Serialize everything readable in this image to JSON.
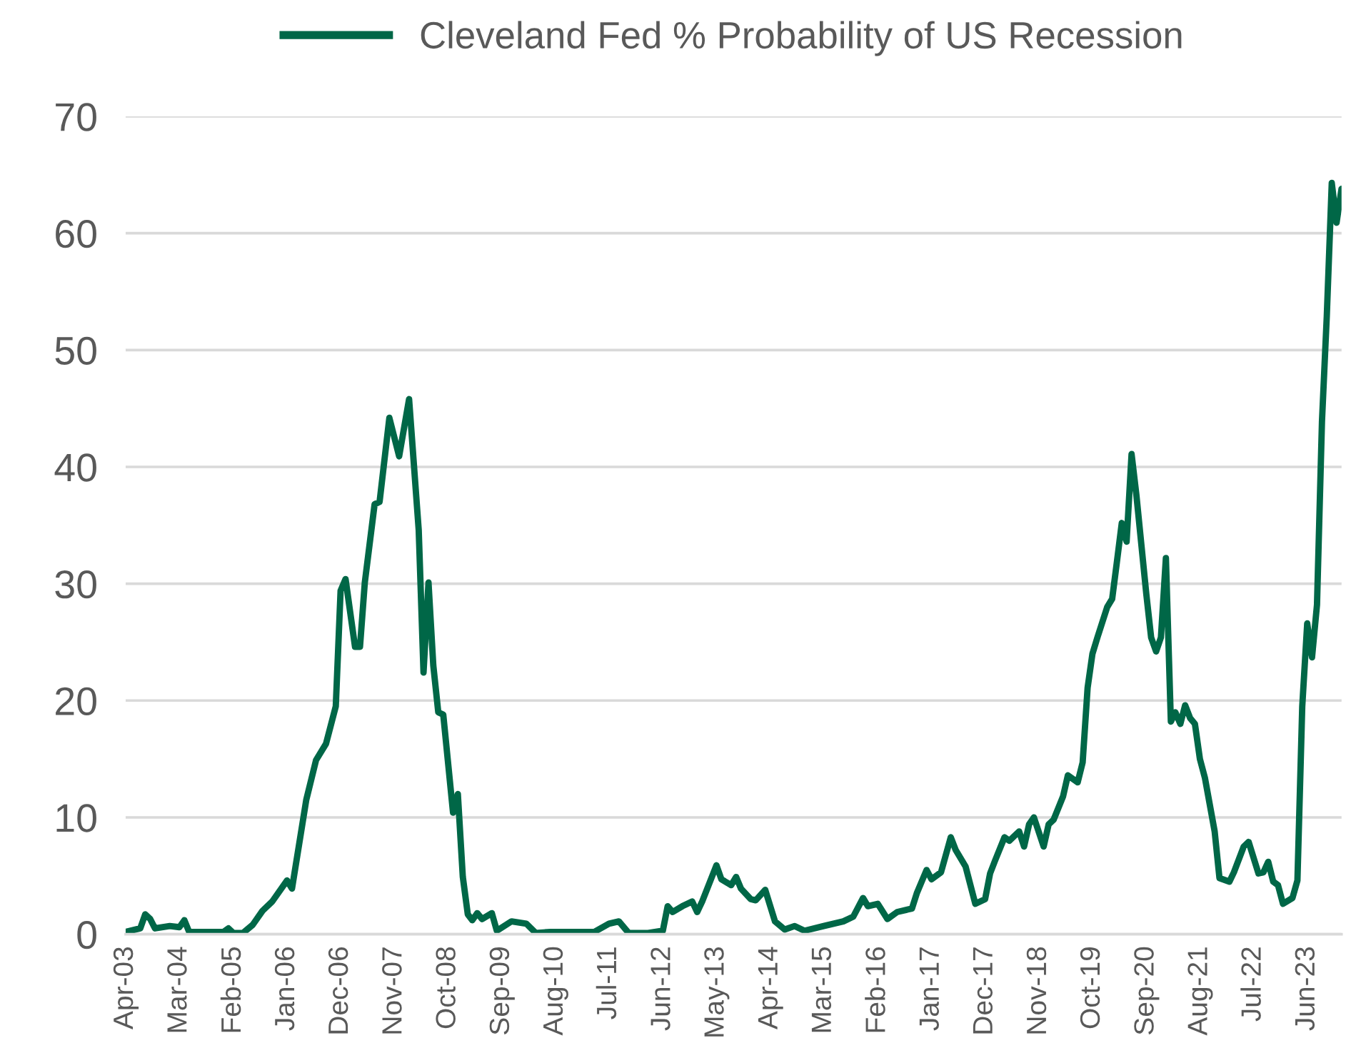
{
  "chart_data": {
    "type": "line",
    "x": [
      "2003-04",
      "2003-07",
      "2003-08",
      "2003-09",
      "2003-10",
      "2004-01",
      "2004-03",
      "2004-04",
      "2004-05",
      "2004-12",
      "2005-01",
      "2005-02",
      "2005-04",
      "2005-06",
      "2005-08",
      "2005-10",
      "2006-01",
      "2006-02",
      "2006-05",
      "2006-07",
      "2006-09",
      "2006-11",
      "2006-12",
      "2007-01",
      "2007-03",
      "2007-04",
      "2007-05",
      "2007-07",
      "2007-08",
      "2007-10",
      "2007-12",
      "2008-02",
      "2008-04",
      "2008-05",
      "2008-06",
      "2008-07",
      "2008-08",
      "2008-09",
      "2008-11",
      "2008-12",
      "2009-01",
      "2009-02",
      "2009-03",
      "2009-04",
      "2009-05",
      "2009-07",
      "2009-08",
      "2009-11",
      "2010-02",
      "2010-04",
      "2010-07",
      "2011-04",
      "2011-07",
      "2011-09",
      "2011-11",
      "2012-03",
      "2012-06",
      "2012-07",
      "2012-08",
      "2012-10",
      "2012-12",
      "2013-01",
      "2013-02",
      "2013-05",
      "2013-06",
      "2013-08",
      "2013-09",
      "2013-10",
      "2013-12",
      "2014-01",
      "2014-03",
      "2014-05",
      "2014-07",
      "2014-09",
      "2014-11",
      "2015-03",
      "2015-07",
      "2015-09",
      "2015-11",
      "2015-12",
      "2016-02",
      "2016-04",
      "2016-06",
      "2016-09",
      "2016-10",
      "2016-12",
      "2017-01",
      "2017-03",
      "2017-05",
      "2017-06",
      "2017-08",
      "2017-10",
      "2017-12",
      "2018-01",
      "2018-02",
      "2018-04",
      "2018-05",
      "2018-07",
      "2018-08",
      "2018-09",
      "2018-10",
      "2018-12",
      "2019-01",
      "2019-02",
      "2019-04",
      "2019-05",
      "2019-07",
      "2019-08",
      "2019-09",
      "2019-10",
      "2019-11",
      "2020-01",
      "2020-02",
      "2020-03",
      "2020-04",
      "2020-05",
      "2020-06",
      "2020-07",
      "2020-09",
      "2020-10",
      "2020-11",
      "2020-12",
      "2021-01",
      "2021-02",
      "2021-03",
      "2021-04",
      "2021-05",
      "2021-06",
      "2021-07",
      "2021-08",
      "2021-09",
      "2021-11",
      "2021-12",
      "2022-02",
      "2022-03",
      "2022-05",
      "2022-06",
      "2022-08",
      "2022-09",
      "2022-10",
      "2022-11",
      "2022-12",
      "2023-01",
      "2023-03",
      "2023-04",
      "2023-05",
      "2023-06",
      "2023-07",
      "2023-08",
      "2023-09",
      "2023-10",
      "2023-11",
      "2023-12",
      "2024-01"
    ],
    "series": [
      {
        "name": "Cleveland Fed % Probability of US Recession",
        "color": "#006747",
        "values": [
          0.2,
          0.5,
          1.7,
          1.3,
          0.5,
          0.7,
          0.6,
          1.2,
          0.2,
          0.2,
          0.5,
          0.1,
          0.1,
          0.8,
          2.0,
          2.8,
          4.6,
          3.9,
          11.5,
          14.9,
          16.3,
          19.5,
          29.4,
          30.4,
          24.6,
          24.6,
          30.1,
          36.8,
          37.0,
          44.2,
          40.9,
          45.8,
          34.6,
          22.4,
          30.1,
          23.0,
          19.0,
          18.8,
          10.4,
          12.0,
          4.9,
          1.7,
          1.2,
          1.8,
          1.3,
          1.8,
          0.3,
          1.1,
          0.9,
          0.1,
          0.2,
          0.2,
          0.9,
          1.1,
          0.1,
          0.1,
          0.3,
          2.4,
          1.9,
          2.4,
          2.8,
          1.9,
          2.8,
          5.9,
          4.7,
          4.2,
          4.9,
          3.9,
          3.0,
          2.9,
          3.8,
          1.1,
          0.4,
          0.7,
          0.3,
          0.7,
          1.1,
          1.5,
          3.1,
          2.4,
          2.6,
          1.3,
          1.9,
          2.2,
          3.5,
          5.5,
          4.7,
          5.3,
          8.3,
          7.2,
          5.8,
          2.6,
          3.0,
          5.2,
          6.3,
          8.3,
          8.0,
          8.8,
          7.5,
          9.4,
          10.0,
          7.5,
          9.4,
          9.8,
          11.8,
          13.6,
          13.0,
          14.7,
          21.1,
          24.0,
          25.4,
          28.0,
          28.7,
          31.8,
          35.2,
          33.6,
          41.1,
          37.6,
          29.1,
          25.4,
          24.2,
          25.4,
          32.2,
          18.2,
          19.0,
          18.0,
          19.6,
          18.5,
          18.0,
          15.0,
          13.4,
          8.8,
          4.8,
          4.5,
          5.3,
          7.5,
          7.9,
          5.2,
          5.3,
          6.2,
          4.5,
          4.2,
          2.6,
          3.1,
          4.6,
          19.5,
          26.6,
          23.7,
          28.2,
          43.9,
          52.9,
          64.3,
          60.9,
          63.8
        ]
      }
    ],
    "xlim": [
      "2003-04",
      "2024-01"
    ],
    "xticks": [
      {
        "value": "2003-04",
        "label": "Apr-03"
      },
      {
        "value": "2004-03",
        "label": "Mar-04"
      },
      {
        "value": "2005-02",
        "label": "Feb-05"
      },
      {
        "value": "2006-01",
        "label": "Jan-06"
      },
      {
        "value": "2006-12",
        "label": "Dec-06"
      },
      {
        "value": "2007-11",
        "label": "Nov-07"
      },
      {
        "value": "2008-10",
        "label": "Oct-08"
      },
      {
        "value": "2009-09",
        "label": "Sep-09"
      },
      {
        "value": "2010-08",
        "label": "Aug-10"
      },
      {
        "value": "2011-07",
        "label": "Jul-11"
      },
      {
        "value": "2012-06",
        "label": "Jun-12"
      },
      {
        "value": "2013-05",
        "label": "May-13"
      },
      {
        "value": "2014-04",
        "label": "Apr-14"
      },
      {
        "value": "2015-03",
        "label": "Mar-15"
      },
      {
        "value": "2016-02",
        "label": "Feb-16"
      },
      {
        "value": "2017-01",
        "label": "Jan-17"
      },
      {
        "value": "2017-12",
        "label": "Dec-17"
      },
      {
        "value": "2018-11",
        "label": "Nov-18"
      },
      {
        "value": "2019-10",
        "label": "Oct-19"
      },
      {
        "value": "2020-09",
        "label": "Sep-20"
      },
      {
        "value": "2021-08",
        "label": "Aug-21"
      },
      {
        "value": "2022-07",
        "label": "Jul-22"
      },
      {
        "value": "2023-06",
        "label": "Jun-23"
      }
    ],
    "ylim": [
      0,
      70
    ],
    "yticks": [
      0,
      10,
      20,
      30,
      40,
      50,
      60,
      70
    ],
    "grid": "y",
    "legend": "top",
    "marker": "none",
    "line_style": "solid"
  }
}
